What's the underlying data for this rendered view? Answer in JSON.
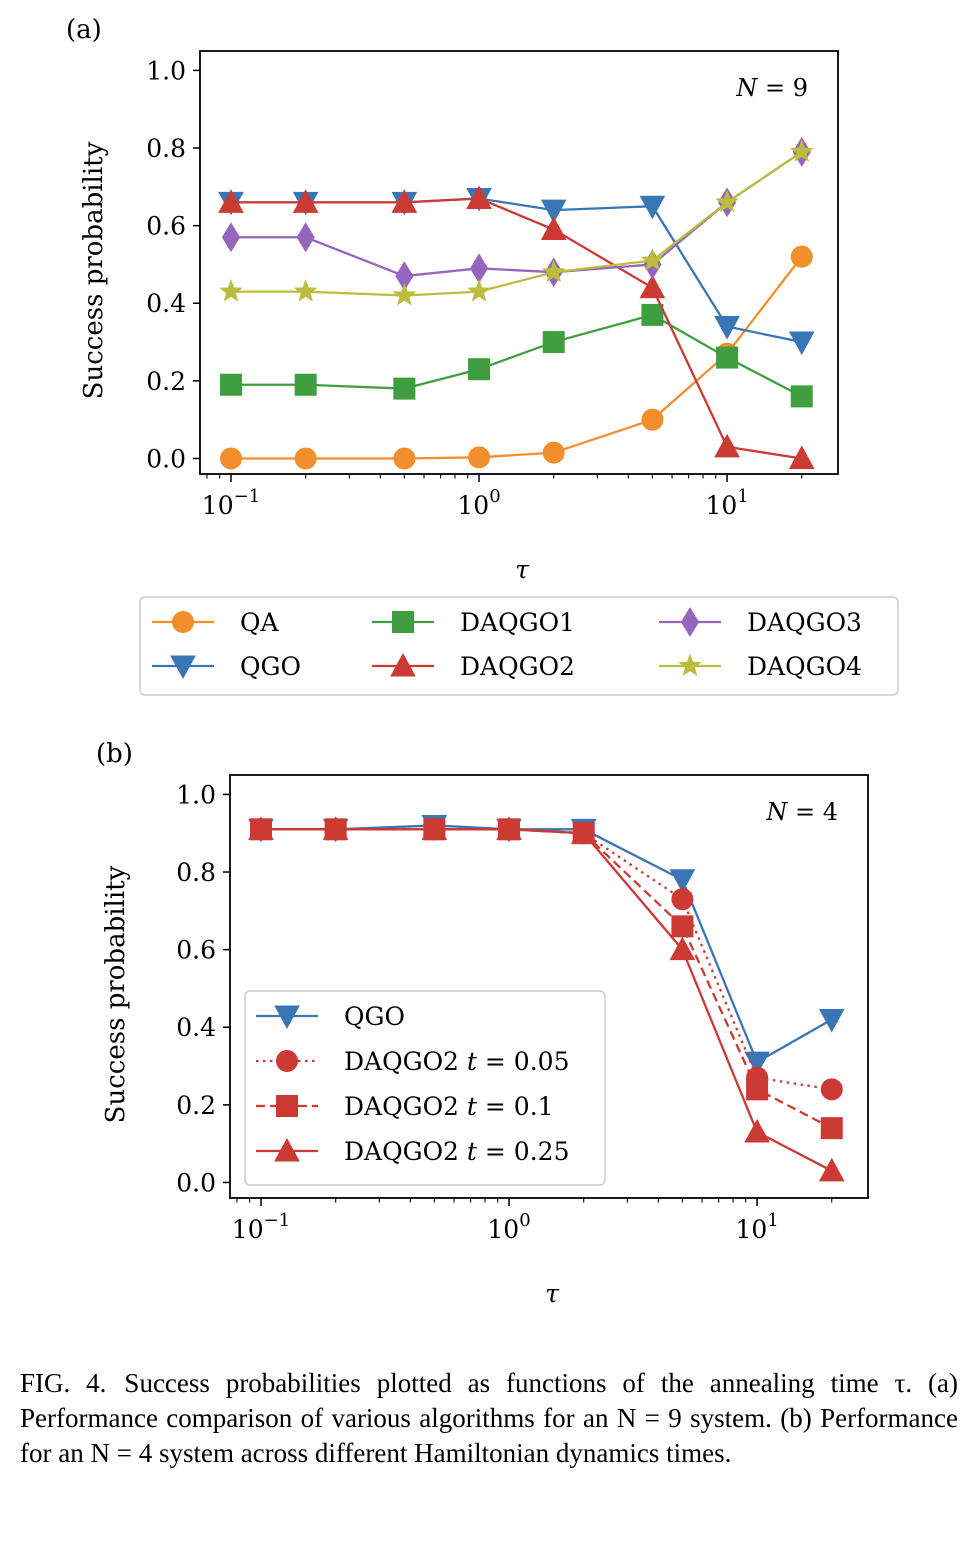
{
  "chart_data": [
    {
      "type": "line",
      "panel_label": "(a)",
      "annotation": "N = 9",
      "xscale": "log",
      "xlabel": "τ",
      "ylabel": "Success probability",
      "xlim": [
        0.075,
        28
      ],
      "ylim": [
        -0.04,
        1.05
      ],
      "xtick_labels": [
        {
          "base": "10",
          "exp": "−1"
        },
        {
          "base": "10",
          "exp": "0"
        },
        {
          "base": "10",
          "exp": "1"
        }
      ],
      "ytick_labels": [
        "0.0",
        "0.2",
        "0.4",
        "0.6",
        "0.8",
        "1.0"
      ],
      "x": [
        0.1,
        0.2,
        0.5,
        1,
        2,
        5,
        10,
        20
      ],
      "legend_placement": "below",
      "series": [
        {
          "name": "QA",
          "color": "#f28e2b",
          "marker": "circle",
          "linestyle": "solid",
          "values": [
            0.0,
            0.0,
            0.0,
            0.003,
            0.015,
            0.1,
            0.27,
            0.52
          ]
        },
        {
          "name": "QGO",
          "color": "#3a76b5",
          "marker": "triangle-down",
          "linestyle": "solid",
          "values": [
            0.66,
            0.66,
            0.66,
            0.67,
            0.64,
            0.65,
            0.34,
            0.3
          ]
        },
        {
          "name": "DAQGO1",
          "color": "#3f9e3f",
          "marker": "square",
          "linestyle": "solid",
          "values": [
            0.19,
            0.19,
            0.18,
            0.23,
            0.3,
            0.37,
            0.26,
            0.16
          ]
        },
        {
          "name": "DAQGO2",
          "color": "#cc3a34",
          "marker": "triangle-up",
          "linestyle": "solid",
          "values": [
            0.66,
            0.66,
            0.66,
            0.67,
            0.59,
            0.44,
            0.03,
            0.0
          ]
        },
        {
          "name": "DAQGO3",
          "color": "#9467bd",
          "marker": "diamond",
          "linestyle": "solid",
          "values": [
            0.57,
            0.57,
            0.47,
            0.49,
            0.48,
            0.5,
            0.66,
            0.79
          ]
        },
        {
          "name": "DAQGO4",
          "color": "#bcbd3c",
          "marker": "star",
          "linestyle": "solid",
          "values": [
            0.43,
            0.43,
            0.42,
            0.43,
            0.48,
            0.51,
            0.66,
            0.79
          ]
        }
      ]
    },
    {
      "type": "line",
      "panel_label": "(b)",
      "annotation": "N = 4",
      "xscale": "log",
      "xlabel": "τ",
      "ylabel": "Success probability",
      "xlim": [
        0.075,
        28
      ],
      "ylim": [
        -0.04,
        1.05
      ],
      "xtick_labels": [
        {
          "base": "10",
          "exp": "−1"
        },
        {
          "base": "10",
          "exp": "0"
        },
        {
          "base": "10",
          "exp": "1"
        }
      ],
      "ytick_labels": [
        "0.0",
        "0.2",
        "0.4",
        "0.6",
        "0.8",
        "1.0"
      ],
      "x": [
        0.1,
        0.2,
        0.5,
        1,
        2,
        5,
        10,
        20
      ],
      "legend_placement": "center-left",
      "series": [
        {
          "name": "QGO",
          "color": "#3a76b5",
          "marker": "triangle-down",
          "linestyle": "solid",
          "values": [
            0.91,
            0.91,
            0.92,
            0.91,
            0.91,
            0.78,
            0.31,
            0.42
          ]
        },
        {
          "name": "DAQGO2",
          "param": "t = 0.05",
          "color": "#cc3a34",
          "marker": "circle",
          "linestyle": "dotted",
          "values": [
            0.91,
            0.91,
            0.91,
            0.91,
            0.9,
            0.73,
            0.27,
            0.24
          ]
        },
        {
          "name": "DAQGO2",
          "param": "t = 0.1",
          "color": "#cc3a34",
          "marker": "square",
          "linestyle": "dashed",
          "values": [
            0.91,
            0.91,
            0.91,
            0.91,
            0.9,
            0.66,
            0.24,
            0.14
          ]
        },
        {
          "name": "DAQGO2",
          "param": "t = 0.25",
          "color": "#cc3a34",
          "marker": "triangle-up",
          "linestyle": "solid",
          "values": [
            0.91,
            0.91,
            0.91,
            0.91,
            0.9,
            0.6,
            0.13,
            0.03
          ]
        }
      ]
    }
  ],
  "caption": {
    "label": "FIG. 4.",
    "text": "Success probabilities plotted as functions of the annealing time τ. (a) Performance comparison of various algorithms for an N = 9 system. (b) Performance for an N = 4 system across different Hamiltonian dynamics times."
  }
}
